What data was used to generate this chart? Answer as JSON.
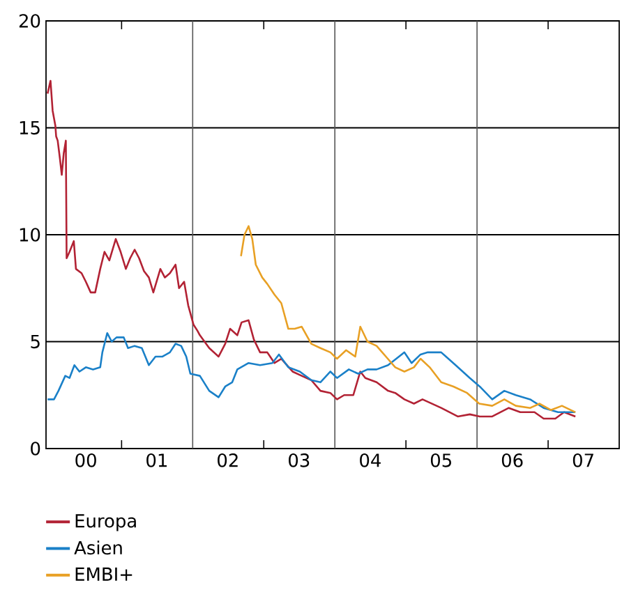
{
  "chart_data": {
    "type": "line",
    "xlim": [
      "1999-12-09",
      "2008-01-01"
    ],
    "xticks": [
      {
        "value": "2000-07-01",
        "label": "00"
      },
      {
        "value": "2001-07-01",
        "label": "01"
      },
      {
        "value": "2002-07-01",
        "label": "02"
      },
      {
        "value": "2003-07-01",
        "label": "03"
      },
      {
        "value": "2004-07-01",
        "label": "04"
      },
      {
        "value": "2005-07-01",
        "label": "05"
      },
      {
        "value": "2006-07-01",
        "label": "06"
      },
      {
        "value": "2007-07-01",
        "label": "07"
      },
      {
        "value": "2001-01-01",
        "label": null
      },
      {
        "value": "2003-01-01",
        "label": null
      },
      {
        "value": "2005-01-01",
        "label": null
      },
      {
        "value": "2007-01-01",
        "label": null
      }
    ],
    "ylim": [
      0,
      20
    ],
    "yticks": [
      0,
      5,
      10,
      15,
      20
    ],
    "grid": "y",
    "legend": "bottom left",
    "line_style": "solid",
    "marker": "none",
    "ref_lines": [
      {
        "axis": "x",
        "value": "2002-01-01",
        "color": "#555555"
      },
      {
        "axis": "x",
        "value": "2004-01-01",
        "color": "#555555"
      },
      {
        "axis": "x",
        "value": "2006-01-01",
        "color": "#555555"
      }
    ],
    "series": [
      {
        "name": "Europa",
        "color": "#b22234",
        "x": [
          "1999-12-17",
          "2000-01-01",
          "2000-01-12",
          "2000-01-26",
          "2000-01-30",
          "2000-02-07",
          "2000-02-18",
          "2000-02-28",
          "2000-03-09",
          "2000-03-20",
          "2000-03-24",
          "2000-04-08",
          "2000-04-30",
          "2000-05-11",
          "2000-06-09",
          "2000-07-01",
          "2000-07-26",
          "2000-08-18",
          "2000-09-13",
          "2000-10-05",
          "2000-10-30",
          "2000-12-02",
          "2000-12-27",
          "2001-01-23",
          "2001-02-14",
          "2001-03-09",
          "2001-04-01",
          "2001-04-26",
          "2001-05-21",
          "2001-06-13",
          "2001-07-19",
          "2001-08-11",
          "2001-09-06",
          "2001-10-05",
          "2001-10-23",
          "2001-11-18",
          "2001-12-09",
          "2002-01-05",
          "2002-01-26",
          "2002-02-07",
          "2002-03-27",
          "2002-05-14",
          "2002-06-17",
          "2002-07-12",
          "2002-08-18",
          "2002-09-09",
          "2002-10-15",
          "2002-11-11",
          "2002-12-13",
          "2003-01-19",
          "2003-02-25",
          "2003-04-01",
          "2003-05-29",
          "2003-07-15",
          "2003-09-02",
          "2003-10-19",
          "2003-12-09",
          "2004-01-12",
          "2004-02-18",
          "2004-04-05",
          "2004-05-11",
          "2004-06-06",
          "2004-08-03",
          "2004-10-01",
          "2004-11-07",
          "2004-12-24",
          "2005-02-11",
          "2005-03-27",
          "2005-05-14",
          "2005-07-01",
          "2005-09-24",
          "2005-11-25",
          "2006-01-15",
          "2006-03-20",
          "2006-06-13",
          "2006-08-11",
          "2006-10-23",
          "2006-12-09",
          "2007-02-07",
          "2007-03-24",
          "2007-05-21"
        ],
        "values": [
          16.6,
          17.2,
          15.8,
          15.1,
          14.6,
          14.4,
          13.6,
          12.8,
          13.8,
          14.4,
          8.9,
          9.2,
          9.7,
          8.4,
          8.2,
          7.8,
          7.3,
          7.3,
          8.4,
          9.2,
          8.8,
          9.8,
          9.2,
          8.4,
          8.9,
          9.3,
          8.9,
          8.3,
          8.0,
          7.3,
          8.4,
          8.0,
          8.2,
          8.6,
          7.5,
          7.8,
          6.7,
          5.8,
          5.5,
          5.3,
          4.7,
          4.3,
          4.9,
          5.6,
          5.3,
          5.9,
          6.0,
          5.1,
          4.5,
          4.5,
          4.0,
          4.2,
          3.6,
          3.4,
          3.2,
          2.7,
          2.6,
          2.3,
          2.5,
          2.5,
          3.6,
          3.3,
          3.1,
          2.7,
          2.6,
          2.3,
          2.1,
          2.3,
          2.1,
          1.9,
          1.5,
          1.6,
          1.5,
          1.5,
          1.9,
          1.7,
          1.7,
          1.4,
          1.4,
          1.7,
          1.5
        ]
      },
      {
        "name": "Asien",
        "color": "#1a80c8",
        "x": [
          "1999-12-17",
          "2000-01-19",
          "2000-02-11",
          "2000-03-17",
          "2000-04-08",
          "2000-05-03",
          "2000-05-29",
          "2000-07-01",
          "2000-08-07",
          "2000-09-13",
          "2000-09-24",
          "2000-10-19",
          "2000-11-11",
          "2000-12-06",
          "2001-01-12",
          "2001-02-03",
          "2001-03-09",
          "2001-04-15",
          "2001-05-21",
          "2001-06-24",
          "2001-07-30",
          "2001-09-06",
          "2001-10-05",
          "2001-11-03",
          "2001-11-29",
          "2001-12-20",
          "2002-02-07",
          "2002-03-27",
          "2002-05-14",
          "2002-06-17",
          "2002-07-23",
          "2002-08-18",
          "2002-10-15",
          "2002-12-13",
          "2003-02-14",
          "2003-03-20",
          "2003-05-07",
          "2003-07-05",
          "2003-09-02",
          "2003-10-19",
          "2003-12-09",
          "2004-01-12",
          "2004-03-13",
          "2004-04-30",
          "2004-06-17",
          "2004-08-03",
          "2004-10-01",
          "2004-12-24",
          "2005-01-30",
          "2005-03-17",
          "2005-04-23",
          "2005-07-01",
          "2005-09-13",
          "2005-11-25",
          "2006-01-15",
          "2006-03-20",
          "2006-05-21",
          "2006-07-19",
          "2006-10-01",
          "2006-12-09",
          "2007-02-21",
          "2007-05-21"
        ],
        "values": [
          2.3,
          2.3,
          2.7,
          3.4,
          3.3,
          3.9,
          3.6,
          3.8,
          3.7,
          3.8,
          4.5,
          5.4,
          5.0,
          5.2,
          5.2,
          4.7,
          4.8,
          4.7,
          3.9,
          4.3,
          4.3,
          4.5,
          4.9,
          4.8,
          4.3,
          3.5,
          3.4,
          2.7,
          2.4,
          2.9,
          3.1,
          3.7,
          4.0,
          3.9,
          4.0,
          4.4,
          3.8,
          3.6,
          3.2,
          3.1,
          3.6,
          3.3,
          3.7,
          3.5,
          3.7,
          3.7,
          3.9,
          4.5,
          4.0,
          4.4,
          4.5,
          4.5,
          3.9,
          3.3,
          2.9,
          2.3,
          2.7,
          2.5,
          2.3,
          1.9,
          1.7,
          1.7
        ]
      },
      {
        "name": "EMBI+",
        "color": "#e8a024",
        "x": [
          "2002-09-06",
          "2002-09-24",
          "2002-10-15",
          "2002-11-03",
          "2002-11-21",
          "2002-12-24",
          "2003-01-19",
          "2003-02-25",
          "2003-04-01",
          "2003-05-07",
          "2003-06-09",
          "2003-07-15",
          "2003-09-02",
          "2003-10-19",
          "2003-12-09",
          "2004-01-12",
          "2004-02-28",
          "2004-04-15",
          "2004-05-11",
          "2004-06-17",
          "2004-08-03",
          "2004-09-20",
          "2004-11-07",
          "2004-12-24",
          "2005-02-11",
          "2005-03-17",
          "2005-05-03",
          "2005-07-01",
          "2005-09-02",
          "2005-11-11",
          "2006-01-12",
          "2006-03-20",
          "2006-05-21",
          "2006-07-19",
          "2006-10-01",
          "2006-11-18",
          "2007-01-15",
          "2007-03-13",
          "2007-05-21"
        ],
        "values": [
          9.0,
          10.0,
          10.4,
          9.8,
          8.6,
          8.0,
          7.7,
          7.2,
          6.8,
          5.6,
          5.6,
          5.7,
          4.9,
          4.7,
          4.5,
          4.2,
          4.6,
          4.3,
          5.7,
          5.0,
          4.8,
          4.3,
          3.8,
          3.6,
          3.8,
          4.2,
          3.8,
          3.1,
          2.9,
          2.6,
          2.1,
          2.0,
          2.3,
          2.0,
          1.9,
          2.1,
          1.8,
          2.0,
          1.7
        ]
      }
    ]
  }
}
